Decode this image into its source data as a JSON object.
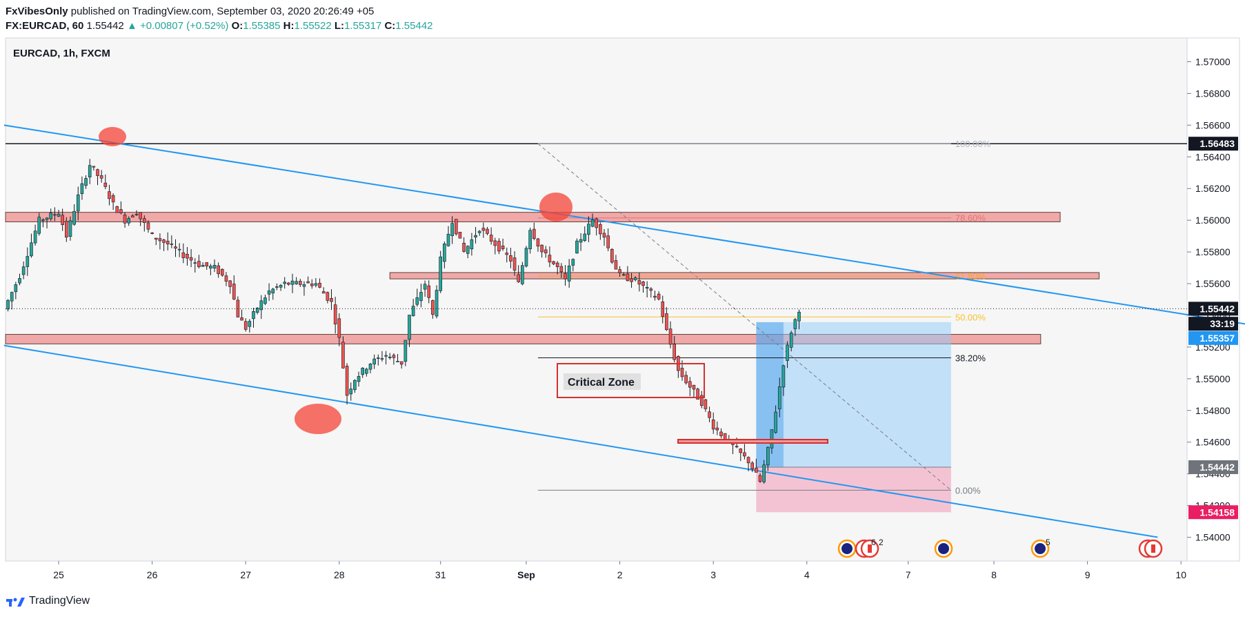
{
  "header": {
    "author": "FxVibesOnly",
    "published": "published on TradingView.com, September 03, 2020 20:26:49 +05",
    "symbol": "FX:EURCAD, 60",
    "last": "1.55442",
    "change_arrow": "▲",
    "change": "+0.00807 (+0.52%)",
    "o_label": "O:",
    "o": "1.55385",
    "h_label": "H:",
    "h": "1.55522",
    "l_label": "L:",
    "l": "1.55317",
    "c_label": "C:",
    "c": "1.55442"
  },
  "pane_title": "EURCAD, 1h, FXCM",
  "annotation": "Critical Zone",
  "event_badges": [
    "6",
    "2",
    "5"
  ],
  "footer": {
    "brand": "TradingView"
  },
  "colors": {
    "bull": "#26a69a",
    "bear": "#ef5350",
    "channel": "#2196f3",
    "zone": "#ef9a9a",
    "zone_border": "#b71c1c"
  },
  "chart_data": {
    "type": "candlestick",
    "symbol": "EURCAD",
    "timeframe": "1h",
    "ylim": [
      1.5385,
      1.5715
    ],
    "y_ticks": [
      "1.57000",
      "1.56800",
      "1.56600",
      "1.56400",
      "1.56200",
      "1.56000",
      "1.55800",
      "1.55600",
      "1.55400",
      "1.55200",
      "1.55000",
      "1.54800",
      "1.54600",
      "1.54400",
      "1.54200",
      "1.54000"
    ],
    "x_ticks": [
      {
        "label": "25",
        "t": 0
      },
      {
        "label": "26",
        "t": 24
      },
      {
        "label": "27",
        "t": 48
      },
      {
        "label": "28",
        "t": 72
      },
      {
        "label": "31",
        "t": 98
      },
      {
        "label": "Sep",
        "t": 120,
        "bold": true
      },
      {
        "label": "2",
        "t": 144
      },
      {
        "label": "3",
        "t": 168
      },
      {
        "label": "4",
        "t": 192
      },
      {
        "label": "7",
        "t": 218
      },
      {
        "label": "8",
        "t": 240
      },
      {
        "label": "9",
        "t": 264
      },
      {
        "label": "10",
        "t": 288
      }
    ],
    "price_labels": [
      {
        "value": "1.56483",
        "price": 1.56483,
        "bg": "#131722"
      },
      {
        "value": "1.55442",
        "price": 1.55442,
        "bg": "#131722"
      },
      {
        "value": "33:19",
        "price": 1.55347,
        "bg": "#131722"
      },
      {
        "value": "1.55357",
        "price": 1.55257,
        "bg": "#2196f3"
      },
      {
        "value": "1.54442",
        "price": 1.54442,
        "bg": "#6f737a"
      },
      {
        "value": "1.54158",
        "price": 1.54158,
        "bg": "#e91e63"
      }
    ],
    "horizontal_line": 1.56483,
    "zones": [
      {
        "from": 1.5605,
        "to": 1.5599,
        "t0": -14,
        "t1": 257
      },
      {
        "from": 1.5567,
        "to": 1.5563,
        "t0": 85,
        "t1": 267
      },
      {
        "from": 1.5528,
        "to": 1.5522,
        "t0": -14,
        "t1": 252
      }
    ],
    "fibonacci": {
      "t0": 123,
      "t1": 229,
      "levels": [
        {
          "label": "100.00%",
          "price": 1.56483,
          "color": "#b2b5be"
        },
        {
          "label": "78.60%",
          "price": 1.56015,
          "color": "#e57373"
        },
        {
          "label": "61.80%",
          "price": 1.55648,
          "color": "#f9a825"
        },
        {
          "label": "50.00%",
          "price": 1.5539,
          "color": "#fbc02d"
        },
        {
          "label": "38.20%",
          "price": 1.55132,
          "color": "#131722"
        },
        {
          "label": "0.00%",
          "price": 1.54297,
          "color": "#787b86"
        }
      ]
    },
    "channel_lines": [
      {
        "t0": -14,
        "p0": 1.566,
        "t1": 311,
        "p1": 1.5532
      },
      {
        "t0": -14,
        "p0": 1.5521,
        "t1": 282,
        "p1": 1.54
      }
    ],
    "position": {
      "t0": 179,
      "t1": 229,
      "entry": 1.54442,
      "target": 1.55357,
      "stop": 1.54158,
      "time_fill_t1": 186
    }
  }
}
